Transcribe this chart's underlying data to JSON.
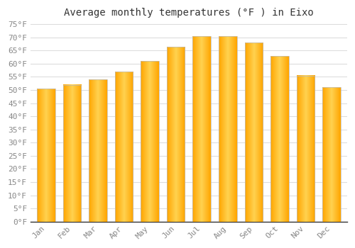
{
  "months": [
    "Jan",
    "Feb",
    "Mar",
    "Apr",
    "May",
    "Jun",
    "Jul",
    "Aug",
    "Sep",
    "Oct",
    "Nov",
    "Dec"
  ],
  "values": [
    50.5,
    52.0,
    54.0,
    57.0,
    61.0,
    66.5,
    70.5,
    70.5,
    68.0,
    63.0,
    55.5,
    51.0
  ],
  "bar_color_center": "#FFD966",
  "bar_color_edge": "#FFA500",
  "title": "Average monthly temperatures (°F ) in Eixo",
  "ylim": [
    0,
    76
  ],
  "yticks": [
    0,
    5,
    10,
    15,
    20,
    25,
    30,
    35,
    40,
    45,
    50,
    55,
    60,
    65,
    70,
    75
  ],
  "bg_color": "#ffffff",
  "plot_bg_color": "#ffffff",
  "grid_color": "#dddddd",
  "title_fontsize": 10,
  "tick_fontsize": 8,
  "tick_color": "#888888",
  "bar_edge_color": "#bbbbbb",
  "bar_width": 0.7
}
